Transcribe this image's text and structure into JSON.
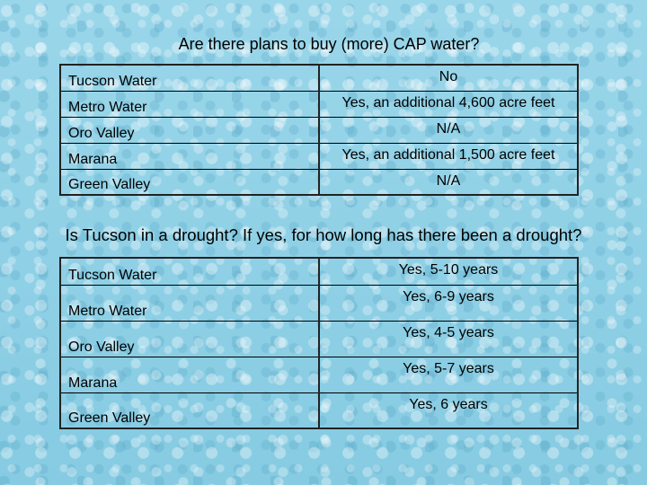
{
  "section1": {
    "title": "Are there plans to buy (more) CAP water?",
    "rows": [
      {
        "name": "Tucson Water",
        "value": "No"
      },
      {
        "name": "Metro Water",
        "value": "Yes, an additional 4,600 acre feet"
      },
      {
        "name": "Oro Valley",
        "value": "N/A"
      },
      {
        "name": "Marana",
        "value": "Yes, an additional 1,500 acre feet"
      },
      {
        "name": "Green Valley",
        "value": "N/A"
      }
    ]
  },
  "section2": {
    "title": "Is Tucson in a drought?  If yes, for how long has there been a drought?",
    "rows": [
      {
        "name": "Tucson Water",
        "value": "Yes, 5-10 years"
      },
      {
        "name": "Metro Water",
        "value": "Yes, 6-9 years"
      },
      {
        "name": "Oro Valley",
        "value": "Yes, 4-5 years"
      },
      {
        "name": "Marana",
        "value": "Yes, 5-7 years"
      },
      {
        "name": "Green Valley",
        "value": "Yes, 6 years"
      }
    ]
  }
}
